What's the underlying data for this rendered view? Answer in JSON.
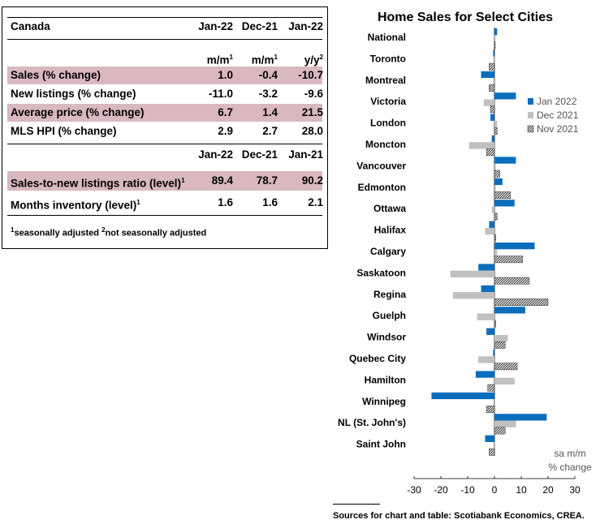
{
  "table": {
    "title": "Canada",
    "col_headers": [
      "Jan-22",
      "Dec-21",
      "Jan-22"
    ],
    "units": [
      {
        "t": "m/m",
        "sup": "1"
      },
      {
        "t": "m/m",
        "sup": "1"
      },
      {
        "t": "y/y",
        "sup": "2"
      }
    ],
    "rows": [
      {
        "label": "Sales (% change)",
        "v": [
          "1.0",
          "-0.4",
          "-10.7"
        ],
        "shaded": true
      },
      {
        "label": "New listings (% change)",
        "v": [
          "-11.0",
          "-3.2",
          "-9.6"
        ],
        "shaded": false
      },
      {
        "label": "Average price (% change)",
        "v": [
          "6.7",
          "1.4",
          "21.5"
        ],
        "shaded": true
      },
      {
        "label": "MLS HPI (% change)",
        "v": [
          "2.9",
          "2.7",
          "28.0"
        ],
        "shaded": false
      }
    ],
    "col_headers2": [
      "Jan-22",
      "Dec-21",
      "Jan-21"
    ],
    "rows2": [
      {
        "label": "Sales-to-new listings ratio (level)",
        "sup": "1",
        "v": [
          "89.4",
          "78.7",
          "90.2"
        ],
        "shaded": true
      },
      {
        "label": "Months inventory (level)",
        "sup": "1",
        "v": [
          "1.6",
          "1.6",
          "2.1"
        ],
        "shaded": false
      }
    ],
    "footnote_sup1": "1",
    "footnote1": "seasonally adjusted",
    "footnote_sup2": "2",
    "footnote2": "not seasonally adjusted"
  },
  "chart_data": {
    "type": "bar",
    "orientation": "horizontal",
    "title": "Home Sales for Select Cities",
    "categories": [
      "National",
      "Toronto",
      "Montreal",
      "Victoria",
      "London",
      "Moncton",
      "Vancouver",
      "Edmonton",
      "Ottawa",
      "Halifax",
      "Calgary",
      "Saskatoon",
      "Regina",
      "Guelph",
      "Windsor",
      "Quebec City",
      "Hamilton",
      "Winnipeg",
      "NL (St. John's)",
      "Saint John"
    ],
    "series": [
      {
        "name": "Jan 2022",
        "color": "#0a6ebd",
        "values": [
          1.0,
          -0.5,
          -5.0,
          8.0,
          -1.5,
          -1.0,
          8.0,
          3.0,
          7.5,
          -2.0,
          15.0,
          -6.0,
          -5.0,
          11.5,
          -3.0,
          -0.5,
          -7.0,
          -23.5,
          19.5,
          -3.5
        ]
      },
      {
        "name": "Dec 2021",
        "color": "#c0c0c0",
        "values": [
          -0.4,
          0.3,
          -0.5,
          -4.0,
          1.0,
          -9.5,
          0.5,
          0.5,
          -1.0,
          -3.5,
          1.0,
          -16.5,
          -15.5,
          -6.5,
          5.0,
          -6.0,
          7.5,
          0.3,
          8.0,
          0.3
        ]
      },
      {
        "name": "Nov 2021",
        "color": "#555555",
        "hatched": true,
        "values": [
          0.3,
          -2.0,
          -2.0,
          -1.5,
          1.0,
          -3.0,
          2.0,
          6.0,
          1.0,
          0.5,
          10.5,
          13.0,
          20.0,
          0.5,
          4.0,
          8.5,
          -2.5,
          -3.0,
          4.0,
          -2.0
        ]
      }
    ],
    "xlim": [
      -30,
      30
    ],
    "xticks": [
      "-30",
      "-20",
      "-10",
      "0",
      "10",
      "20",
      "30"
    ],
    "unit_note_1": "sa m/m",
    "unit_note_2": "% change",
    "legend_position": "right"
  },
  "sources": "Sources for chart and table: Scotiabank Economics, CREA."
}
